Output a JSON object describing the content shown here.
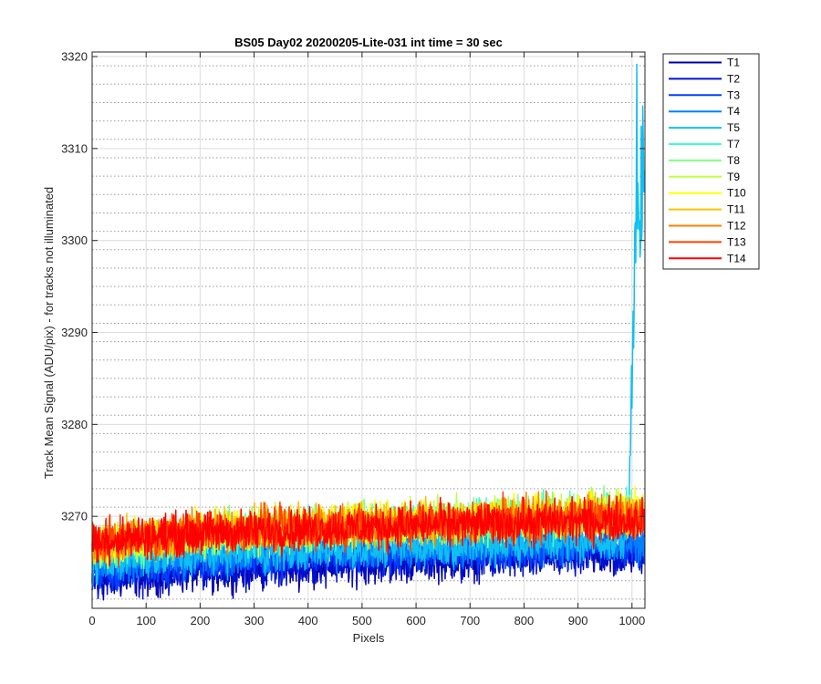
{
  "chart_data": {
    "type": "line",
    "title": "BS05 Day02 20200205-Lite-031 int time = 30 sec",
    "xlabel": "Pixels",
    "ylabel": "Track Mean Signal (ADU/pix) - for tracks not illuminated",
    "xlim": [
      0,
      1024
    ],
    "ylim": [
      3260,
      3320.5
    ],
    "xticks": [
      0,
      100,
      200,
      300,
      400,
      500,
      600,
      700,
      800,
      900,
      1000
    ],
    "yticks": [
      3270,
      3280,
      3290,
      3300,
      3310,
      3320
    ],
    "grid": "on (major solid, minor dotted)",
    "legend_position": "outside right, top",
    "series": [
      {
        "name": "T1",
        "color": "#0000aa",
        "base_start": 3262.5,
        "base_end": 3266.0,
        "noise": 1.6
      },
      {
        "name": "T2",
        "color": "#0010d0",
        "base_start": 3262.8,
        "base_end": 3266.2,
        "noise": 1.6
      },
      {
        "name": "T3",
        "color": "#0040ff",
        "base_start": 3263.6,
        "base_end": 3266.8,
        "noise": 1.5
      },
      {
        "name": "T4",
        "color": "#0080ff",
        "base_start": 3264.2,
        "base_end": 3267.2,
        "noise": 1.5
      },
      {
        "name": "T5",
        "color": "#10c0f0",
        "base_start": 3264.6,
        "base_end": 3267.4,
        "noise": 1.5,
        "spike": {
          "x_start": 990,
          "x_end": 1024,
          "peak": 3320.5
        }
      },
      {
        "name": "T7",
        "color": "#40ffc0",
        "base_start": 3265.6,
        "base_end": 3270.2,
        "noise": 1.6
      },
      {
        "name": "T8",
        "color": "#80ff80",
        "base_start": 3266.0,
        "base_end": 3270.4,
        "noise": 1.6
      },
      {
        "name": "T9",
        "color": "#c0ff40",
        "base_start": 3266.2,
        "base_end": 3270.4,
        "noise": 1.6
      },
      {
        "name": "T10",
        "color": "#ffff00",
        "base_start": 3266.4,
        "base_end": 3270.4,
        "noise": 1.6
      },
      {
        "name": "T11",
        "color": "#ffc000",
        "base_start": 3266.6,
        "base_end": 3270.2,
        "noise": 1.6
      },
      {
        "name": "T12",
        "color": "#ff8000",
        "base_start": 3266.8,
        "base_end": 3270.0,
        "noise": 1.6
      },
      {
        "name": "T13",
        "color": "#ff4000",
        "base_start": 3267.0,
        "base_end": 3269.8,
        "noise": 1.6
      },
      {
        "name": "T14",
        "color": "#ff0000",
        "base_start": 3267.0,
        "base_end": 3269.6,
        "noise": 1.6
      }
    ]
  }
}
